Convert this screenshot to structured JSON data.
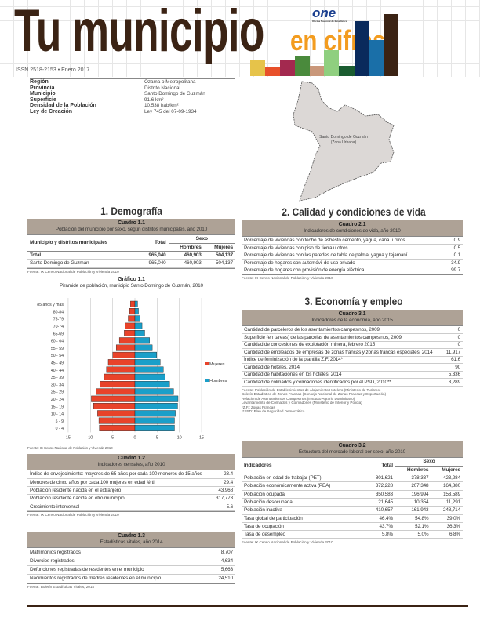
{
  "header": {
    "title": "Tu municipio",
    "subtitle": "en cifras",
    "issn": "ISSN 2518-2153 • Enero 2017",
    "logo": "one",
    "logo_tagline": "Oficina Nacional de Estadística",
    "bar_colors": [
      "#e6c34a",
      "#e8502a",
      "#a3294f",
      "#4a8a3c",
      "#c9977a",
      "#8fcf7f",
      "#1a5c30",
      "#0a2a5c",
      "#1a6fa8",
      "#3b2314"
    ]
  },
  "info": [
    {
      "k": "Región",
      "v": "Ozama o Metropolitana"
    },
    {
      "k": "Provincia",
      "v": "Distrito Nacional"
    },
    {
      "k": "Municipio",
      "v": "Santo Domingo de Guzmán"
    },
    {
      "k": "Superficie",
      "v": "91.6 km²"
    },
    {
      "k": "Densidad de la Población",
      "v": "10,538 hab/km²"
    },
    {
      "k": "Ley de Creación",
      "v": "Ley 745 del 07-09-1934"
    }
  ],
  "map": {
    "label1": "Santo Domingo de Guzmán",
    "label2": "(Zona Urbana)"
  },
  "s1": {
    "title": "1. Demografía",
    "c11": {
      "num": "Cuadro 1.1",
      "title": "Población del municipio por sexo, según distritos municipales, año 2010",
      "h_mun": "Municipio y distritos municipales",
      "h_total": "Total",
      "h_sexo": "Sexo",
      "h_h": "Hombres",
      "h_m": "Mujeres",
      "rows": [
        [
          "Total",
          "965,040",
          "460,903",
          "504,137"
        ],
        [
          "Santo Domingo de Guzmán",
          "965,040",
          "460,903",
          "504,137"
        ]
      ],
      "src": "Fuente: IX Censo Nacional de Población y Vivienda 2010"
    },
    "g11": {
      "num": "Gráfico 1.1",
      "title": "Pirámide de población, municipio Santo Domingo de Guzmán, 2010",
      "src": "Fuente: IX Censo Nacional de Población y Vivienda 2010"
    },
    "c12": {
      "num": "Cuadro 1.2",
      "title": "Indicadores censales, año 2010",
      "rows": [
        [
          "Índice de envejecimiento: mayores de 65 años por cada 100 menores de 15 años",
          "23.4"
        ],
        [
          "Menores de cinco años por cada 100 mujeres en edad fértil",
          "29.4"
        ],
        [
          "Población residente nacida en el extranjero",
          "43,968"
        ],
        [
          "Población residente nacida en otro municipio",
          "317,773"
        ],
        [
          "Crecimiento intercensal",
          "5.6"
        ]
      ],
      "src": "Fuente: IX Censo Nacional de Población y Vivienda 2010"
    },
    "c13": {
      "num": "Cuadro 1.3",
      "title": "Estadísticas vitales, año 2014",
      "rows": [
        [
          "Matrimonios registrados",
          "8,707"
        ],
        [
          "Divorcios registrados",
          "4,634"
        ],
        [
          "Defunciones registradas de residentes en el municipio",
          "5,663"
        ],
        [
          "Nacimientos registrados de madres residentes en el municipio",
          "24,510"
        ]
      ],
      "src": "Fuente: Boletín Estadísticas Vitales, 2014"
    }
  },
  "s2": {
    "title": "2. Calidad y condiciones de vida",
    "c21": {
      "num": "Cuadro 2.1",
      "title": "Indicadores de condiciones de vida, año 2010",
      "rows": [
        [
          "Porcentaje de viviendas con techo de asbesto cemento, yagua, cana u otros",
          "0.9"
        ],
        [
          "Porcentaje de viviendas con piso de tierra u otros",
          "0.5"
        ],
        [
          "Porcentaje de viviendas con las paredes de tabla de palma, yagua y tejamaní",
          "0.1"
        ],
        [
          "Porcentaje de hogares con automóvil de uso privado",
          "34.9"
        ],
        [
          "Porcentaje de hogares con provisión de energía eléctrica",
          "99.7"
        ]
      ],
      "src": "Fuente: IX Censo Nacional de Población y Vivienda 2010"
    }
  },
  "s3": {
    "title": "3. Economía y empleo",
    "c31": {
      "num": "Cuadro 3.1",
      "title": "Indicadores de la economía, año 2015",
      "rows": [
        [
          "Cantidad de parceleros de los asentamientos campesinos, 2009",
          "0"
        ],
        [
          "Superficie (en tareas) de las parcelas de asentamientos campesinos, 2009",
          "0"
        ],
        [
          "Cantidad de concesiones de explotación minera, febrero 2015",
          "0"
        ],
        [
          "Cantidad de empleados de empresas de zonas francas y zonas francas especiales, 2014",
          "11,917"
        ],
        [
          "Índice de feminización de la plantilla Z.F. 2014*",
          "61.6"
        ],
        [
          "Cantidad de hoteles, 2014",
          "90"
        ],
        [
          "Cantidad de habitaciones en los hoteles, 2014",
          "5,336"
        ],
        [
          "Cantidad de colmados y colmadones identificados por el PSD, 2010**",
          "3,289"
        ]
      ],
      "notes": [
        "Fuente: Población de Establecimientos de Alojamiento Hotelero (Ministerio de Turismo)",
        "Boletín Estadístico de Zonas Francas (Consejo Nacional de Zonas Francas y Exportación)",
        "Relación de Asentamientos Campesinos (Instituto Agrario Dominicano)",
        "Levantamiento de Colmados y Colmadones (Ministerio de Interior y Policía)",
        "*Z.F.: Zonas Francas",
        "**PSD: Plan de Seguridad Democrática"
      ]
    },
    "c32": {
      "num": "Cuadro 3.2",
      "title": "Estructura del mercado laboral por sexo, año 2010",
      "h_ind": "Indicadores",
      "h_total": "Total",
      "h_sexo": "Sexo",
      "h_h": "Hombres",
      "h_m": "Mujeres",
      "rows": [
        [
          "Población en edad de trabajar (PET)",
          "801,621",
          "378,337",
          "423,284"
        ],
        [
          "Población económicamente activa (PEA)",
          "372,228",
          "207,348",
          "164,880"
        ],
        [
          "Población ocupada",
          "350,583",
          "196,994",
          "153,589"
        ],
        [
          "Población desocupada",
          "21,645",
          "10,354",
          "11,291"
        ],
        [
          "Población inactiva",
          "410,657",
          "161,943",
          "248,714"
        ],
        [
          "Tasa global de participación",
          "46.4%",
          "54.8%",
          "39.0%"
        ],
        [
          "Tasa de ocupación",
          "43.7%",
          "52.1%",
          "36.3%"
        ],
        [
          "Tasa de desempleo",
          "5.8%",
          "5.0%",
          "6.8%"
        ]
      ],
      "src": "Fuente: IX Censo Nacional de Población y Vivienda 2010"
    }
  },
  "chart_data": {
    "type": "bar",
    "orientation": "horizontal",
    "subtype": "population-pyramid",
    "title": "Pirámide de población, municipio Santo Domingo de Guzmán, 2010",
    "categories": [
      "85 años y más",
      "80-84",
      "75-79",
      "70-74",
      "65-69",
      "60 - 64",
      "55 - 59",
      "50 - 54",
      "45 - 49",
      "40 - 44",
      "35 - 39",
      "30 - 34",
      "25 - 29",
      "20 - 24",
      "15 - 19",
      "10 - 14",
      "5 - 9",
      "0 - 4"
    ],
    "series": [
      {
        "name": "Mujeres",
        "color": "#e8432a",
        "values": [
          1.0,
          1.2,
          1.5,
          2.2,
          2.4,
          3.5,
          4.2,
          5.0,
          6.0,
          6.4,
          6.9,
          7.8,
          8.7,
          9.8,
          9.3,
          8.4,
          8.1,
          8.0
        ]
      },
      {
        "name": "Hombres",
        "color": "#1a9fc9",
        "values": [
          0.6,
          0.8,
          1.1,
          1.6,
          2.2,
          3.3,
          3.9,
          4.9,
          5.7,
          6.4,
          6.8,
          7.8,
          8.7,
          9.7,
          9.6,
          9.1,
          8.9,
          8.9
        ]
      }
    ],
    "xticks": [
      "15",
      "10",
      "5",
      "0",
      "5",
      "10",
      "15"
    ],
    "xlim": [
      -15,
      15
    ],
    "grid": true,
    "legend": "right"
  }
}
